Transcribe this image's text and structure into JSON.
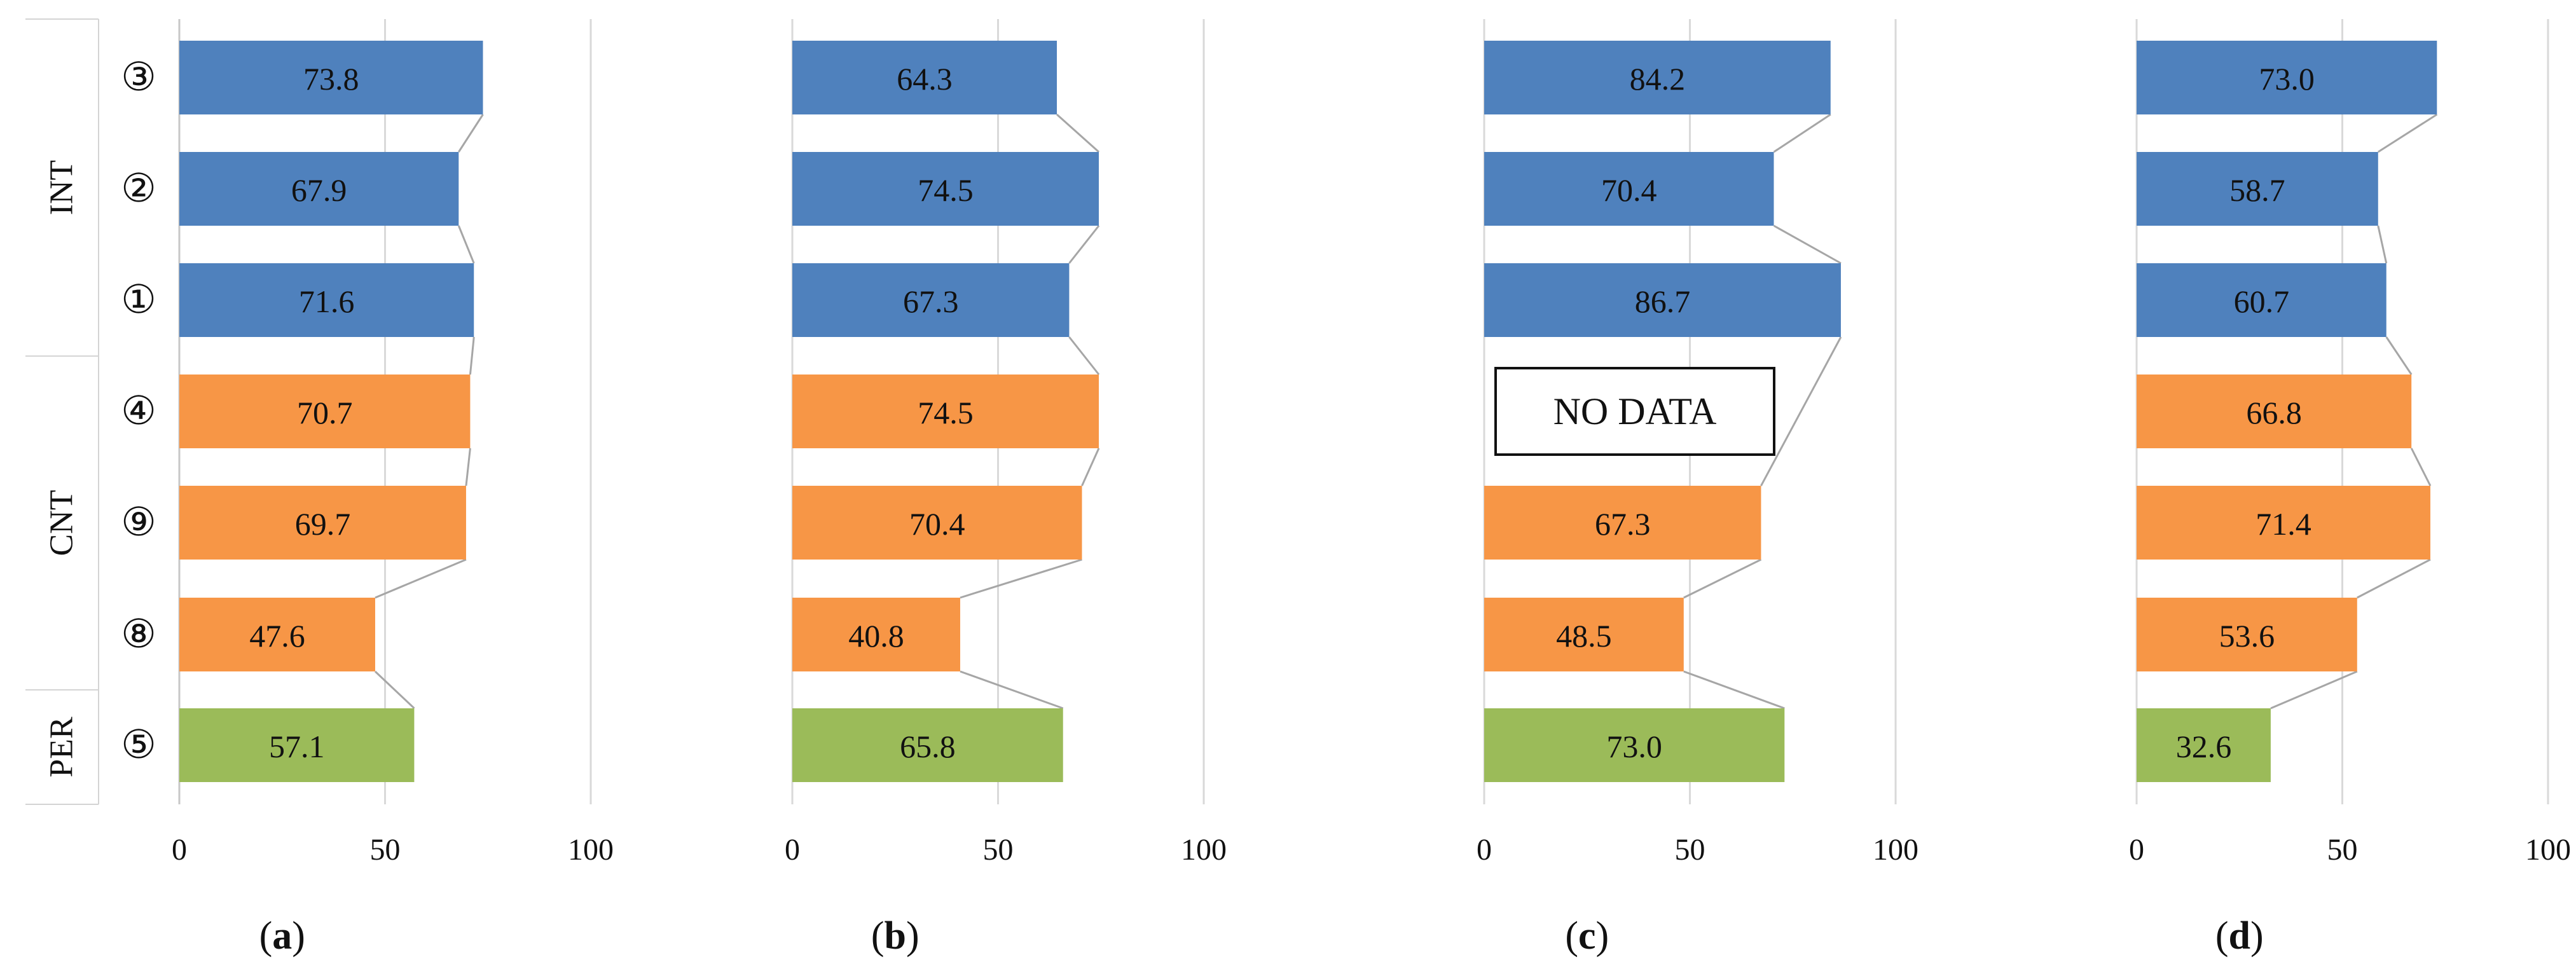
{
  "chart_data": {
    "type": "bar",
    "orientation": "horizontal",
    "xlim": [
      0,
      100
    ],
    "xticks": [
      "0",
      "50",
      "100"
    ],
    "groups": [
      {
        "name": "INT",
        "rows": [
          "③",
          "②",
          "①"
        ]
      },
      {
        "name": "CNT",
        "rows": [
          "④",
          "⑨",
          "⑧"
        ]
      },
      {
        "name": "PER",
        "rows": [
          "⑤"
        ]
      }
    ],
    "categories": [
      "③",
      "②",
      "①",
      "④",
      "⑨",
      "⑧",
      "⑤"
    ],
    "category_group": [
      "INT",
      "INT",
      "INT",
      "CNT",
      "CNT",
      "CNT",
      "PER"
    ],
    "group_colors": {
      "INT": "#4f81bd",
      "CNT": "#f79646",
      "PER": "#9bbb59"
    },
    "connector_color": "#a6a6a6",
    "no_data_label": "NO DATA",
    "panels": [
      {
        "caption_open": "(",
        "caption_letter": "a",
        "caption_close": ")",
        "values": [
          73.8,
          67.9,
          71.6,
          70.7,
          69.7,
          47.6,
          57.1
        ]
      },
      {
        "caption_open": "(",
        "caption_letter": "b",
        "caption_close": ")",
        "values": [
          64.3,
          74.5,
          67.3,
          74.5,
          70.4,
          40.8,
          65.8
        ]
      },
      {
        "caption_open": "(",
        "caption_letter": "c",
        "caption_close": ")",
        "values": [
          84.2,
          70.4,
          86.7,
          null,
          67.3,
          48.5,
          73.0
        ]
      },
      {
        "caption_open": "(",
        "caption_letter": "d",
        "caption_close": ")",
        "values": [
          73.0,
          58.7,
          60.7,
          66.8,
          71.4,
          53.6,
          32.6
        ]
      }
    ]
  }
}
